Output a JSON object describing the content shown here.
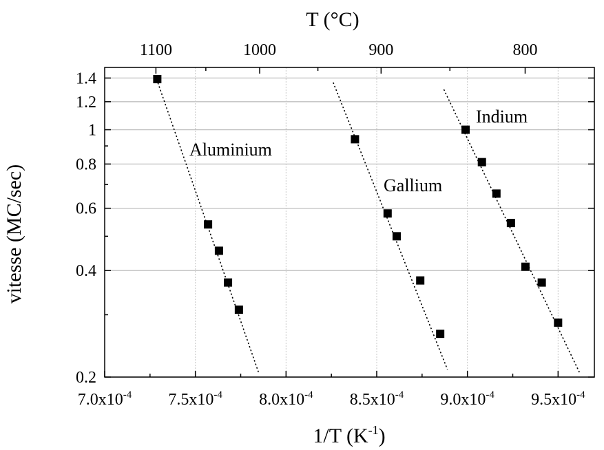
{
  "chart_data": {
    "type": "scatter",
    "xlabel": "1/T (K",
    "xlabel_sup": "-1",
    "xlabel_end": ")",
    "ylabel": "vitesse (MC/sec)",
    "top_xlabel": "T (°C)",
    "xlim": [
      0.0007,
      0.00097
    ],
    "ylim": [
      0.2,
      1.5
    ],
    "y_scale": "log",
    "grid": true,
    "x_ticks": [
      {
        "value": 0.0007,
        "mantissa": "7.0x10",
        "exp": "-4"
      },
      {
        "value": 0.00075,
        "mantissa": "7.5x10",
        "exp": "-4"
      },
      {
        "value": 0.0008,
        "mantissa": "8.0x10",
        "exp": "-4"
      },
      {
        "value": 0.00085,
        "mantissa": "8.5x10",
        "exp": "-4"
      },
      {
        "value": 0.0009,
        "mantissa": "9.0x10",
        "exp": "-4"
      },
      {
        "value": 0.00095,
        "mantissa": "9.5x10",
        "exp": "-4"
      }
    ],
    "y_ticks": [
      {
        "value": 0.2,
        "label": "0.2"
      },
      {
        "value": 0.4,
        "label": "0.4"
      },
      {
        "value": 0.6,
        "label": "0.6"
      },
      {
        "value": 0.8,
        "label": "0.8"
      },
      {
        "value": 1.0,
        "label": "1"
      },
      {
        "value": 1.2,
        "label": "1.2"
      },
      {
        "value": 1.4,
        "label": "1.4"
      }
    ],
    "top_ticks": [
      {
        "celsius": 1100,
        "label": "1100"
      },
      {
        "celsius": 1000,
        "label": "1000"
      },
      {
        "celsius": 900,
        "label": "900"
      },
      {
        "celsius": 800,
        "label": "800"
      }
    ],
    "series": [
      {
        "name": "Aluminium",
        "x": [
          0.000729,
          0.000757,
          0.000763,
          0.000768,
          0.000774
        ],
        "y": [
          1.39,
          0.54,
          0.455,
          0.37,
          0.31
        ],
        "fit_x": [
          0.000728,
          0.000785
        ],
        "fit_y": [
          1.42,
          0.205
        ]
      },
      {
        "name": "Gallium",
        "x": [
          0.000838,
          0.000856,
          0.000861,
          0.000874,
          0.000885
        ],
        "y": [
          0.94,
          0.58,
          0.5,
          0.375,
          0.265
        ],
        "fit_x": [
          0.000826,
          0.000889
        ],
        "fit_y": [
          1.36,
          0.21
        ]
      },
      {
        "name": "Indium",
        "x": [
          0.000899,
          0.000908,
          0.000916,
          0.000924,
          0.000932,
          0.000941,
          0.00095
        ],
        "y": [
          1.0,
          0.81,
          0.66,
          0.545,
          0.41,
          0.37,
          0.285
        ],
        "fit_x": [
          0.000887,
          0.000962
        ],
        "fit_y": [
          1.3,
          0.205
        ]
      }
    ]
  }
}
